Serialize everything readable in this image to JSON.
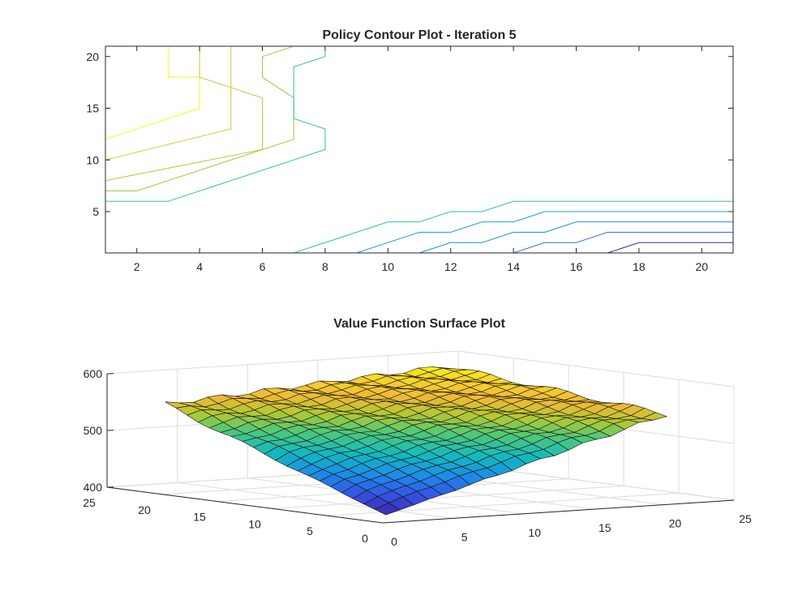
{
  "chart_data": [
    {
      "type": "contour",
      "title": "Policy Contour Plot - Iteration 5",
      "xlim": [
        1,
        21
      ],
      "ylim": [
        1,
        21
      ],
      "xticks": [
        2,
        4,
        6,
        8,
        10,
        12,
        14,
        16,
        18,
        20
      ],
      "yticks": [
        5,
        10,
        15,
        20
      ],
      "colors": [
        "#3e26a8",
        "#2f6de0",
        "#1aa0d6",
        "#30c49a",
        "#9cc93c",
        "#d7c531",
        "#f5e52a",
        "#f8fa0d"
      ],
      "levels": [
        {
          "level": 8,
          "color": "#f8fa0d",
          "points": [
            [
              1,
              12
            ],
            [
              4,
              15
            ],
            [
              4,
              18
            ],
            [
              3,
              18
            ],
            [
              3,
              21
            ]
          ]
        },
        {
          "level": 7,
          "color": "#d7c531",
          "points": [
            [
              1,
              10
            ],
            [
              5,
              13
            ],
            [
              5,
              21
            ]
          ]
        },
        {
          "level": 6,
          "color": "#c8c23a",
          "points": [
            [
              1,
              8
            ],
            [
              6,
              11
            ],
            [
              6,
              16
            ],
            [
              4,
              18
            ],
            [
              4,
              21
            ]
          ]
        },
        {
          "level": 5,
          "color": "#9cc93c",
          "points": [
            [
              1,
              7
            ],
            [
              2,
              7
            ],
            [
              7,
              12
            ],
            [
              7,
              16
            ],
            [
              6,
              18
            ],
            [
              6,
              20
            ],
            [
              7,
              21
            ]
          ]
        },
        {
          "level": 4,
          "color": "#30c49a",
          "points": [
            [
              1,
              6
            ],
            [
              3,
              6
            ],
            [
              8,
              11
            ],
            [
              8,
              13
            ],
            [
              7,
              14
            ],
            [
              7,
              19
            ],
            [
              8,
              20
            ],
            [
              8,
              21
            ]
          ]
        },
        {
          "level": 3,
          "color": "#2bbfb0",
          "points": [
            [
              7,
              1
            ],
            [
              10,
              4
            ],
            [
              11,
              4
            ],
            [
              12,
              5
            ],
            [
              13,
              5
            ],
            [
              14,
              6
            ],
            [
              21,
              6
            ]
          ]
        },
        {
          "level": 2,
          "color": "#1aa0d6",
          "points": [
            [
              9,
              1
            ],
            [
              11,
              3
            ],
            [
              12,
              3
            ],
            [
              13,
              4
            ],
            [
              14,
              4
            ],
            [
              15,
              5
            ],
            [
              21,
              5
            ]
          ]
        },
        {
          "level": 1.5,
          "color": "#1b8ee0",
          "points": [
            [
              11,
              1
            ],
            [
              12,
              2
            ],
            [
              13,
              2
            ],
            [
              14,
              3
            ],
            [
              15,
              3
            ],
            [
              16,
              4
            ],
            [
              21,
              4
            ]
          ]
        },
        {
          "level": 1,
          "color": "#2f6de0",
          "points": [
            [
              14,
              1
            ],
            [
              15,
              2
            ],
            [
              16,
              2
            ],
            [
              17,
              3
            ],
            [
              21,
              3
            ]
          ]
        },
        {
          "level": 0,
          "color": "#3e26a8",
          "points": [
            [
              17,
              1
            ],
            [
              18,
              2
            ],
            [
              21,
              2
            ]
          ]
        }
      ]
    },
    {
      "type": "surface",
      "title": "Value Function Surface Plot",
      "zlim": [
        400,
        600
      ],
      "zticks": [
        400,
        500,
        600
      ],
      "xticks": [
        0,
        5,
        10,
        15,
        20,
        25
      ],
      "yticks": [
        0,
        5,
        10,
        15,
        20,
        25
      ],
      "xlim": [
        0,
        25
      ],
      "ylim": [
        0,
        25
      ],
      "grid": true,
      "mesh_size": 21,
      "value_corners": {
        "x1_y1": 410,
        "x21_y1": 555,
        "x1_y21": 555,
        "x21_y21": 590
      },
      "colormap": "parula"
    }
  ]
}
